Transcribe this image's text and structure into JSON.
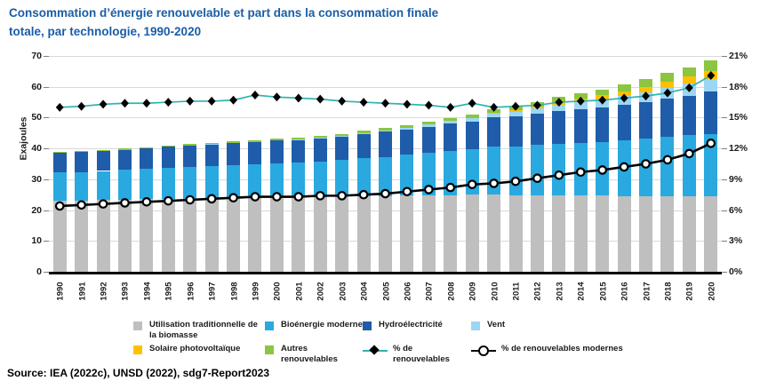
{
  "title": {
    "line1": "Consommation d’énergie renouvelable et part dans la consommation finale",
    "line2": "totale, par technologie, 1990-2020"
  },
  "y_axis": {
    "label": "Exajoules",
    "ticks": [
      0,
      10,
      20,
      30,
      40,
      50,
      60,
      70
    ]
  },
  "y2_axis": {
    "ticks": [
      "0%",
      "3%",
      "6%",
      "9%",
      "12%",
      "15%",
      "18%",
      "21%"
    ]
  },
  "chart_data": {
    "type": "bar",
    "stacked": true,
    "title": "Consommation d’énergie renouvelable et part dans la consommation finale totale, par technologie, 1990-2020",
    "ylabel": "Exajoules",
    "ylim": [
      0,
      70
    ],
    "y2lim": [
      0,
      21
    ],
    "grid": "horizontal",
    "legend_position": "bottom",
    "categories": [
      1990,
      1991,
      1992,
      1993,
      1994,
      1995,
      1996,
      1997,
      1998,
      1999,
      2000,
      2001,
      2002,
      2003,
      2004,
      2005,
      2006,
      2007,
      2008,
      2009,
      2010,
      2011,
      2012,
      2013,
      2014,
      2015,
      2016,
      2017,
      2018,
      2019,
      2020
    ],
    "series": [
      {
        "name": "Utilisation traditionnelle de la biomasse",
        "color": "#BFBFBF",
        "values": [
          23.0,
          23.1,
          23.2,
          23.4,
          23.5,
          23.6,
          23.7,
          23.8,
          23.9,
          24.0,
          24.1,
          24.2,
          24.3,
          24.4,
          24.5,
          24.6,
          24.7,
          24.8,
          24.9,
          25.0,
          25.0,
          24.9,
          24.8,
          24.8,
          24.7,
          24.7,
          24.6,
          24.6,
          24.5,
          24.5,
          24.5
        ]
      },
      {
        "name": "Bioénergie moderne",
        "color": "#29A9E0",
        "values": [
          9.2,
          9.3,
          9.5,
          9.6,
          9.8,
          10.0,
          10.2,
          10.4,
          10.6,
          10.8,
          11.0,
          11.2,
          11.5,
          11.8,
          12.3,
          12.7,
          13.2,
          13.8,
          14.3,
          14.7,
          15.5,
          15.8,
          16.3,
          16.8,
          17.2,
          17.5,
          18.0,
          18.6,
          19.3,
          19.8,
          20.2
        ]
      },
      {
        "name": "Hydroélectricité",
        "color": "#1F5CA9",
        "values": [
          6.3,
          6.4,
          6.4,
          6.6,
          6.7,
          6.9,
          7.0,
          7.1,
          7.2,
          7.3,
          7.4,
          7.3,
          7.5,
          7.6,
          7.9,
          8.1,
          8.3,
          8.5,
          8.9,
          9.0,
          9.6,
          9.7,
          10.2,
          10.6,
          10.9,
          11.1,
          11.5,
          11.8,
          12.3,
          12.8,
          13.7
        ]
      },
      {
        "name": "Vent",
        "color": "#9BD7F4",
        "values": [
          0,
          0,
          0,
          0,
          0,
          0,
          0,
          0.05,
          0.05,
          0.1,
          0.1,
          0.1,
          0.15,
          0.2,
          0.3,
          0.35,
          0.45,
          0.6,
          0.8,
          1.0,
          1.2,
          1.5,
          1.8,
          2.1,
          2.4,
          2.7,
          3.0,
          3.3,
          3.6,
          3.9,
          4.1
        ]
      },
      {
        "name": "Solaire photovoltaïque",
        "color": "#FFC000",
        "values": [
          0,
          0,
          0,
          0,
          0,
          0,
          0,
          0,
          0,
          0,
          0,
          0,
          0,
          0.01,
          0.02,
          0.04,
          0.06,
          0.1,
          0.15,
          0.2,
          0.3,
          0.45,
          0.6,
          0.8,
          1.0,
          1.2,
          1.4,
          1.7,
          2.0,
          2.3,
          2.7
        ]
      },
      {
        "name": "Autres renouvelables",
        "color": "#8CC540",
        "values": [
          0.3,
          0.3,
          0.3,
          0.35,
          0.4,
          0.4,
          0.45,
          0.45,
          0.5,
          0.5,
          0.55,
          0.6,
          0.6,
          0.65,
          0.7,
          0.75,
          0.8,
          0.85,
          0.9,
          1.0,
          1.1,
          1.2,
          1.4,
          1.6,
          1.8,
          2.0,
          2.2,
          2.5,
          2.8,
          3.1,
          3.5
        ]
      }
    ],
    "line_series": [
      {
        "name": "% de renouvelables",
        "axis": "right",
        "line_color": "#2FB3AE",
        "marker": "diamond",
        "marker_color": "#000000",
        "values": [
          16.0,
          16.1,
          16.3,
          16.4,
          16.4,
          16.5,
          16.6,
          16.6,
          16.7,
          17.2,
          17.0,
          16.9,
          16.8,
          16.6,
          16.5,
          16.4,
          16.3,
          16.2,
          16.0,
          16.4,
          16.0,
          16.1,
          16.2,
          16.5,
          16.6,
          16.7,
          16.9,
          17.1,
          17.4,
          17.9,
          19.1
        ]
      },
      {
        "name": "% de renouvelables modernes",
        "axis": "right",
        "line_color": "#000000",
        "marker": "circle",
        "marker_color": "#FFFFFF",
        "values": [
          6.4,
          6.5,
          6.6,
          6.7,
          6.8,
          6.9,
          7.0,
          7.1,
          7.2,
          7.3,
          7.3,
          7.3,
          7.4,
          7.4,
          7.5,
          7.6,
          7.8,
          8.0,
          8.2,
          8.5,
          8.6,
          8.8,
          9.1,
          9.4,
          9.7,
          9.9,
          10.2,
          10.5,
          10.9,
          11.5,
          12.5
        ]
      }
    ]
  },
  "legend": {
    "items": [
      {
        "swatch": "square",
        "color": "#BFBFBF",
        "label": "Utilisation traditionnelle de la biomasse"
      },
      {
        "swatch": "square",
        "color": "#29A9E0",
        "label": "Bioénergie moderne"
      },
      {
        "swatch": "square",
        "color": "#1F5CA9",
        "label": "Hydroélectricité"
      },
      {
        "swatch": "square",
        "color": "#9BD7F4",
        "label": "Vent"
      },
      {
        "swatch": "square",
        "color": "#FFC000",
        "label": "Solaire photovoltaïque"
      },
      {
        "swatch": "square",
        "color": "#8CC540",
        "label": "Autres renouvelables"
      },
      {
        "swatch": "diamond-line",
        "color": "#2FB3AE",
        "label": "% de renouvelables"
      },
      {
        "swatch": "circle-line",
        "color": "#000000",
        "label": "% de renouvelables modernes"
      }
    ]
  },
  "source": "Source: IEA (2022c), UNSD (2022), sdg7-Report2023",
  "colors": {
    "title": "#1A5DA6",
    "gridline": "#D9D9D9",
    "axis": "#000000",
    "teal_line": "#2FB3AE"
  }
}
